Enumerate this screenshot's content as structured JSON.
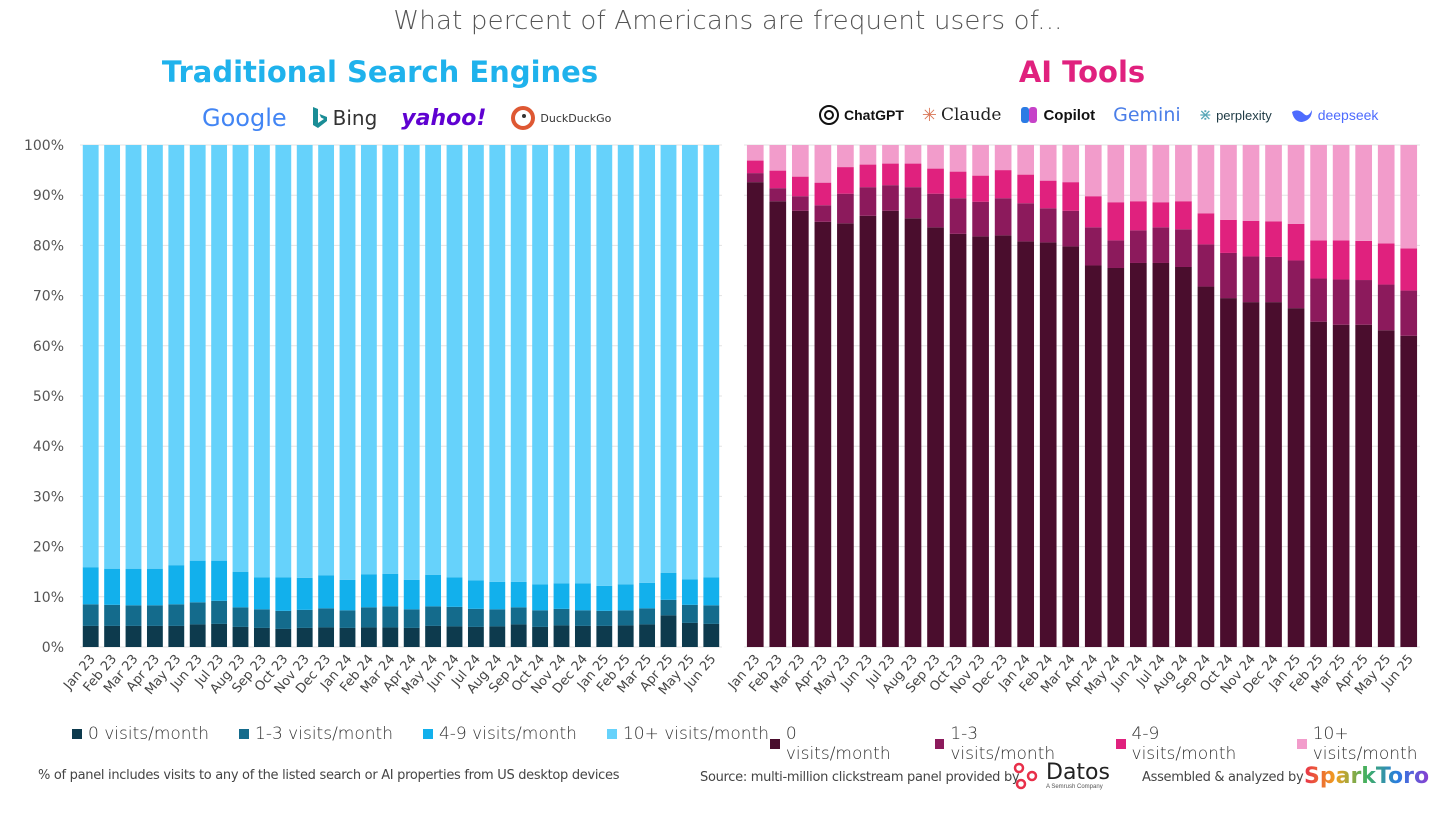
{
  "title": "What percent of Americans are frequent users of...",
  "panels": {
    "left_title": "Traditional Search Engines",
    "right_title": "AI Tools"
  },
  "logos": {
    "search": [
      {
        "name": "Google",
        "icon": "google-logo"
      },
      {
        "name": "Bing",
        "icon": "bing-logo"
      },
      {
        "name": "yahoo!",
        "icon": "yahoo-logo"
      },
      {
        "name": "DuckDuckGo",
        "icon": "duckduckgo-logo"
      }
    ],
    "ai": [
      {
        "name": "ChatGPT",
        "icon": "chatgpt-logo"
      },
      {
        "name": "Claude",
        "icon": "claude-logo"
      },
      {
        "name": "Copilot",
        "icon": "copilot-logo"
      },
      {
        "name": "Gemini",
        "icon": "gemini-logo"
      },
      {
        "name": "perplexity",
        "icon": "perplexity-logo"
      },
      {
        "name": "deepseek",
        "icon": "deepseek-logo"
      }
    ]
  },
  "colors": {
    "search": [
      "#0d3a4d",
      "#146b8c",
      "#12b0ec",
      "#66d2fb"
    ],
    "ai": [
      "#4a0d2d",
      "#8c1a5c",
      "#e0217e",
      "#f29ccb"
    ],
    "title_search": "#1fb2ec",
    "title_ai": "#e0217e"
  },
  "chart_data": [
    {
      "type": "bar",
      "stacked": true,
      "title": "Traditional Search Engines",
      "ylim": [
        0,
        100
      ],
      "yticks": [
        "0%",
        "10%",
        "20%",
        "30%",
        "40%",
        "50%",
        "60%",
        "70%",
        "80%",
        "90%",
        "100%"
      ],
      "grid": true,
      "legend_position": "bottom",
      "categories": [
        "Jan 23",
        "Feb 23",
        "Mar 23",
        "Apr 23",
        "May 23",
        "Jun 23",
        "Jul 23",
        "Aug 23",
        "Sep 23",
        "Oct 23",
        "Nov 23",
        "Dec 23",
        "Jan 24",
        "Feb 24",
        "Mar 24",
        "Apr 24",
        "May 24",
        "Jun 24",
        "Jul 24",
        "Aug 24",
        "Sep 24",
        "Oct 24",
        "Nov 24",
        "Dec 24",
        "Jan 25",
        "Feb 25",
        "Mar 25",
        "Apr 25",
        "May 25",
        "Jun 25"
      ],
      "series": [
        {
          "name": "0 visits/month",
          "values": [
            4.2,
            4.2,
            4.2,
            4.2,
            4.2,
            4.5,
            4.6,
            4.0,
            3.8,
            3.6,
            3.8,
            3.9,
            3.8,
            3.9,
            3.9,
            3.8,
            4.2,
            4.1,
            4.0,
            4.1,
            4.5,
            4.0,
            4.3,
            4.2,
            4.2,
            4.3,
            4.5,
            6.3,
            4.8,
            4.6
          ]
        },
        {
          "name": "1-3 visits/month",
          "values": [
            4.3,
            4.2,
            4.1,
            4.1,
            4.3,
            4.4,
            4.6,
            3.9,
            3.7,
            3.6,
            3.6,
            3.8,
            3.5,
            4.0,
            4.2,
            3.7,
            3.9,
            3.9,
            3.6,
            3.4,
            3.4,
            3.3,
            3.3,
            3.1,
            3.0,
            3.0,
            3.2,
            3.1,
            3.6,
            3.7
          ]
        },
        {
          "name": "4-9 visits/month",
          "values": [
            7.4,
            7.2,
            7.3,
            7.3,
            7.8,
            8.3,
            8.0,
            7.1,
            6.4,
            6.7,
            6.4,
            6.6,
            6.1,
            6.6,
            6.5,
            5.9,
            6.3,
            5.9,
            5.7,
            5.5,
            5.1,
            5.2,
            5.1,
            5.4,
            5.0,
            5.2,
            5.1,
            5.4,
            5.1,
            5.6
          ]
        },
        {
          "name": "10+ visits/month",
          "values": [
            84.1,
            84.4,
            84.4,
            84.4,
            83.7,
            82.8,
            82.8,
            85.0,
            86.1,
            86.1,
            86.2,
            85.7,
            86.6,
            85.5,
            85.4,
            86.6,
            85.6,
            86.1,
            86.7,
            87.0,
            87.0,
            87.5,
            87.3,
            87.3,
            87.8,
            87.5,
            87.2,
            85.2,
            86.5,
            86.1
          ]
        }
      ]
    },
    {
      "type": "bar",
      "stacked": true,
      "title": "AI Tools",
      "ylim": [
        0,
        100
      ],
      "grid": true,
      "legend_position": "bottom",
      "categories": [
        "Jan 23",
        "Feb 23",
        "Mar 23",
        "Apr 23",
        "May 23",
        "Jun 23",
        "Jul 23",
        "Aug 23",
        "Sep 23",
        "Oct 23",
        "Nov 23",
        "Dec 23",
        "Jan 24",
        "Feb 24",
        "Mar 24",
        "Apr 24",
        "May 24",
        "Jun 24",
        "Jul 24",
        "Aug 24",
        "Sep 24",
        "Oct 24",
        "Nov 24",
        "Dec 24",
        "Jan 25",
        "Feb 25",
        "Mar 25",
        "Apr 25",
        "May 25",
        "Jun 25"
      ],
      "series": [
        {
          "name": "0 visits/month",
          "values": [
            92.6,
            88.8,
            86.9,
            84.7,
            84.4,
            85.9,
            86.9,
            85.4,
            83.6,
            82.3,
            81.8,
            82.0,
            80.8,
            80.6,
            79.8,
            76.0,
            75.5,
            76.5,
            76.5,
            75.7,
            71.8,
            69.5,
            68.7,
            68.7,
            67.5,
            64.8,
            64.2,
            64.2,
            63.1,
            62.0
          ]
        },
        {
          "name": "1-3 visits/month",
          "values": [
            1.8,
            2.6,
            2.9,
            3.3,
            5.9,
            5.7,
            5.1,
            6.2,
            6.7,
            7.1,
            6.9,
            7.4,
            7.6,
            6.8,
            7.1,
            7.6,
            5.5,
            6.5,
            7.1,
            7.5,
            8.4,
            9.0,
            9.1,
            9.0,
            9.5,
            8.6,
            9.0,
            8.9,
            9.1,
            9.0
          ]
        },
        {
          "name": "4-9 visits/month",
          "values": [
            2.5,
            3.5,
            3.9,
            4.5,
            5.3,
            4.5,
            4.3,
            4.7,
            5.0,
            5.3,
            5.2,
            5.6,
            5.7,
            5.5,
            5.7,
            6.2,
            7.6,
            5.8,
            5.0,
            5.6,
            6.2,
            6.6,
            7.1,
            7.1,
            7.3,
            7.6,
            7.8,
            7.8,
            8.2,
            8.4
          ]
        },
        {
          "name": "10+ visits/month",
          "values": [
            3.1,
            5.1,
            6.3,
            7.5,
            4.4,
            3.9,
            3.7,
            3.7,
            4.7,
            5.3,
            6.1,
            5.0,
            5.9,
            7.1,
            7.4,
            10.2,
            11.4,
            11.2,
            11.4,
            11.2,
            13.6,
            14.9,
            15.1,
            15.2,
            15.7,
            19.0,
            19.0,
            19.1,
            19.6,
            20.6
          ]
        }
      ]
    }
  ],
  "footer": {
    "note": "% of panel includes visits to any of the listed search or AI properties from US desktop devices",
    "source": "Source: multi-million clickstream panel provided by",
    "datos": "Datos",
    "datos_sub": "A Semrush Company",
    "assembled": "Assembled & analyzed by",
    "sparktoro": "SparkToro"
  }
}
